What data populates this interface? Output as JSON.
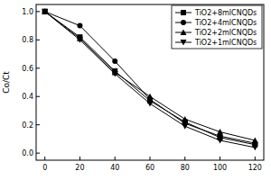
{
  "chart_data": {
    "type": "line",
    "y_label": "Co/Ct",
    "x": [
      0,
      20,
      40,
      60,
      80,
      100,
      120
    ],
    "xlim": [
      -5,
      125
    ],
    "xticks": [
      0,
      20,
      40,
      60,
      80,
      100,
      120
    ],
    "ylim": [
      -0.05,
      1.05
    ],
    "yticks": [
      {
        "value": 0,
        "label": "0.0"
      },
      0.2,
      0.4,
      0.6,
      0.8,
      {
        "value": 1,
        "label": "1.0"
      }
    ],
    "grid": false,
    "legend": "upper right",
    "series": [
      {
        "name": "TiO2+8mlCNQDs",
        "color": "#000000",
        "marker": "square",
        "line_style": "solid",
        "values": [
          1,
          0.82,
          0.58,
          0.37,
          0.22,
          0.11,
          0.06
        ]
      },
      {
        "name": "TiO2+4mlCNQDs",
        "color": "#000000",
        "marker": "circle",
        "line_style": "solid",
        "values": [
          1,
          0.9,
          0.65,
          0.38,
          0.21,
          0.12,
          0.07
        ]
      },
      {
        "name": "TiO2+2mlCNQDs",
        "color": "#000000",
        "marker": "triangle",
        "line_style": "solid",
        "values": [
          1,
          0.81,
          0.57,
          0.4,
          0.24,
          0.15,
          0.09
        ]
      },
      {
        "name": "TiO2+1mlCNQDs",
        "color": "#000000",
        "marker": "triangle_down",
        "line_style": "solid",
        "values": [
          1,
          0.8,
          0.56,
          0.35,
          0.19,
          0.09,
          0.04
        ]
      }
    ]
  }
}
